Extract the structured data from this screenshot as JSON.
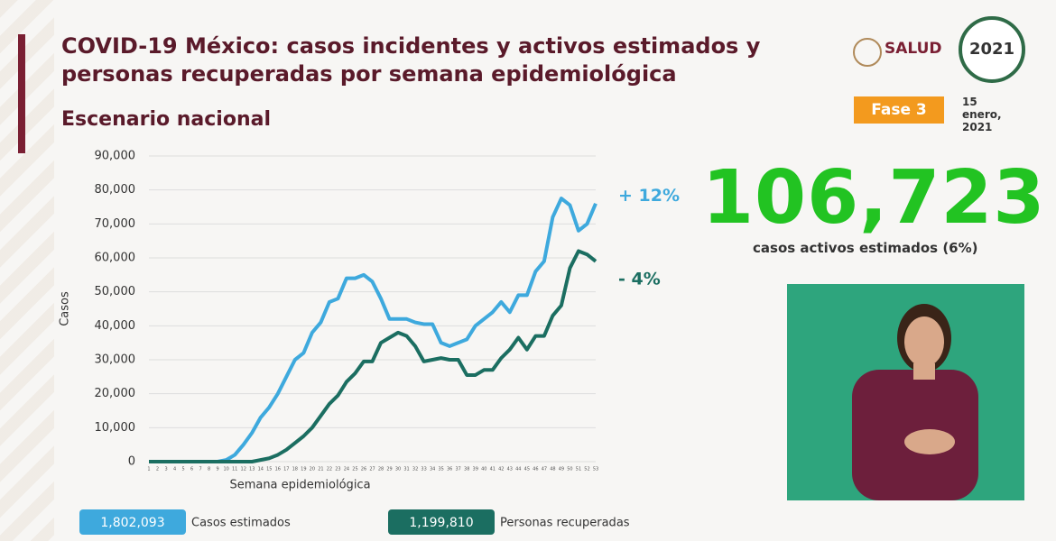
{
  "chart_data": {
    "type": "line",
    "title": "COVID-19 México: casos incidentes y activos estimados y personas recuperadas por semana epidemiológica",
    "subtitle": "Escenario nacional",
    "x_label": "Semana epidemiológica",
    "y_label": "Casos",
    "categories": [
      "1",
      "2",
      "3",
      "4",
      "5",
      "6",
      "7",
      "8",
      "9",
      "10",
      "11",
      "12",
      "13",
      "14",
      "15",
      "16",
      "17",
      "18",
      "19",
      "20",
      "21",
      "22",
      "23",
      "24",
      "25",
      "26",
      "27",
      "28",
      "29",
      "30",
      "31",
      "32",
      "33",
      "34",
      "35",
      "36",
      "37",
      "38",
      "39",
      "40",
      "41",
      "42",
      "43",
      "44",
      "45",
      "46",
      "47",
      "48",
      "49",
      "50",
      "51",
      "52",
      "53"
    ],
    "series": [
      {
        "name": "Casos estimados",
        "color": "#3ea9dd",
        "total": "1,802,093",
        "change_label": "+ 12%",
        "values": [
          0,
          0,
          0,
          0,
          0,
          0,
          0,
          0,
          0,
          500,
          2000,
          5000,
          8500,
          13000,
          16000,
          20000,
          25000,
          30000,
          32000,
          38000,
          41000,
          47000,
          48000,
          54000,
          54000,
          55000,
          53000,
          48000,
          42000,
          42000,
          42000,
          41000,
          40500,
          40500,
          35000,
          34000,
          35000,
          36000,
          40000,
          42000,
          44000,
          47000,
          44000,
          49000,
          49000,
          56000,
          59000,
          72000,
          77500,
          75500,
          68000,
          70000,
          76000
        ]
      },
      {
        "name": "Personas recuperadas",
        "color": "#1b6e61",
        "total": "1,199,810",
        "change_label": "- 4%",
        "values": [
          0,
          0,
          0,
          0,
          0,
          0,
          0,
          0,
          0,
          0,
          0,
          0,
          0,
          500,
          1000,
          2000,
          3500,
          5500,
          7500,
          10000,
          13500,
          17000,
          19500,
          23500,
          26000,
          29500,
          29500,
          35000,
          36500,
          38000,
          37000,
          34000,
          29500,
          30000,
          30500,
          30000,
          30000,
          25500,
          25500,
          27000,
          27000,
          30500,
          33000,
          36500,
          33000,
          37000,
          37000,
          43000,
          46000,
          57000,
          62000,
          61000,
          59000
        ]
      }
    ],
    "ylim": [
      0,
      90000
    ],
    "yticks": [
      {
        "value": 0,
        "label": "0"
      },
      {
        "value": 10000,
        "label": "10,000"
      },
      {
        "value": 20000,
        "label": "20,000"
      },
      {
        "value": 30000,
        "label": "30,000"
      },
      {
        "value": 40000,
        "label": "40,000"
      },
      {
        "value": 50000,
        "label": "50,000"
      },
      {
        "value": 60000,
        "label": "60,000"
      },
      {
        "value": 70000,
        "label": "70,000"
      },
      {
        "value": 80000,
        "label": "80,000"
      },
      {
        "value": 90000,
        "label": "90,000"
      }
    ],
    "grid": true
  },
  "header": {
    "logo": "SALUD",
    "phase": "Fase 3",
    "date": "15 enero, 2021",
    "year_logo": "2021"
  },
  "highlight": {
    "value": "106,723",
    "caption": "casos activos estimados (6%)"
  }
}
